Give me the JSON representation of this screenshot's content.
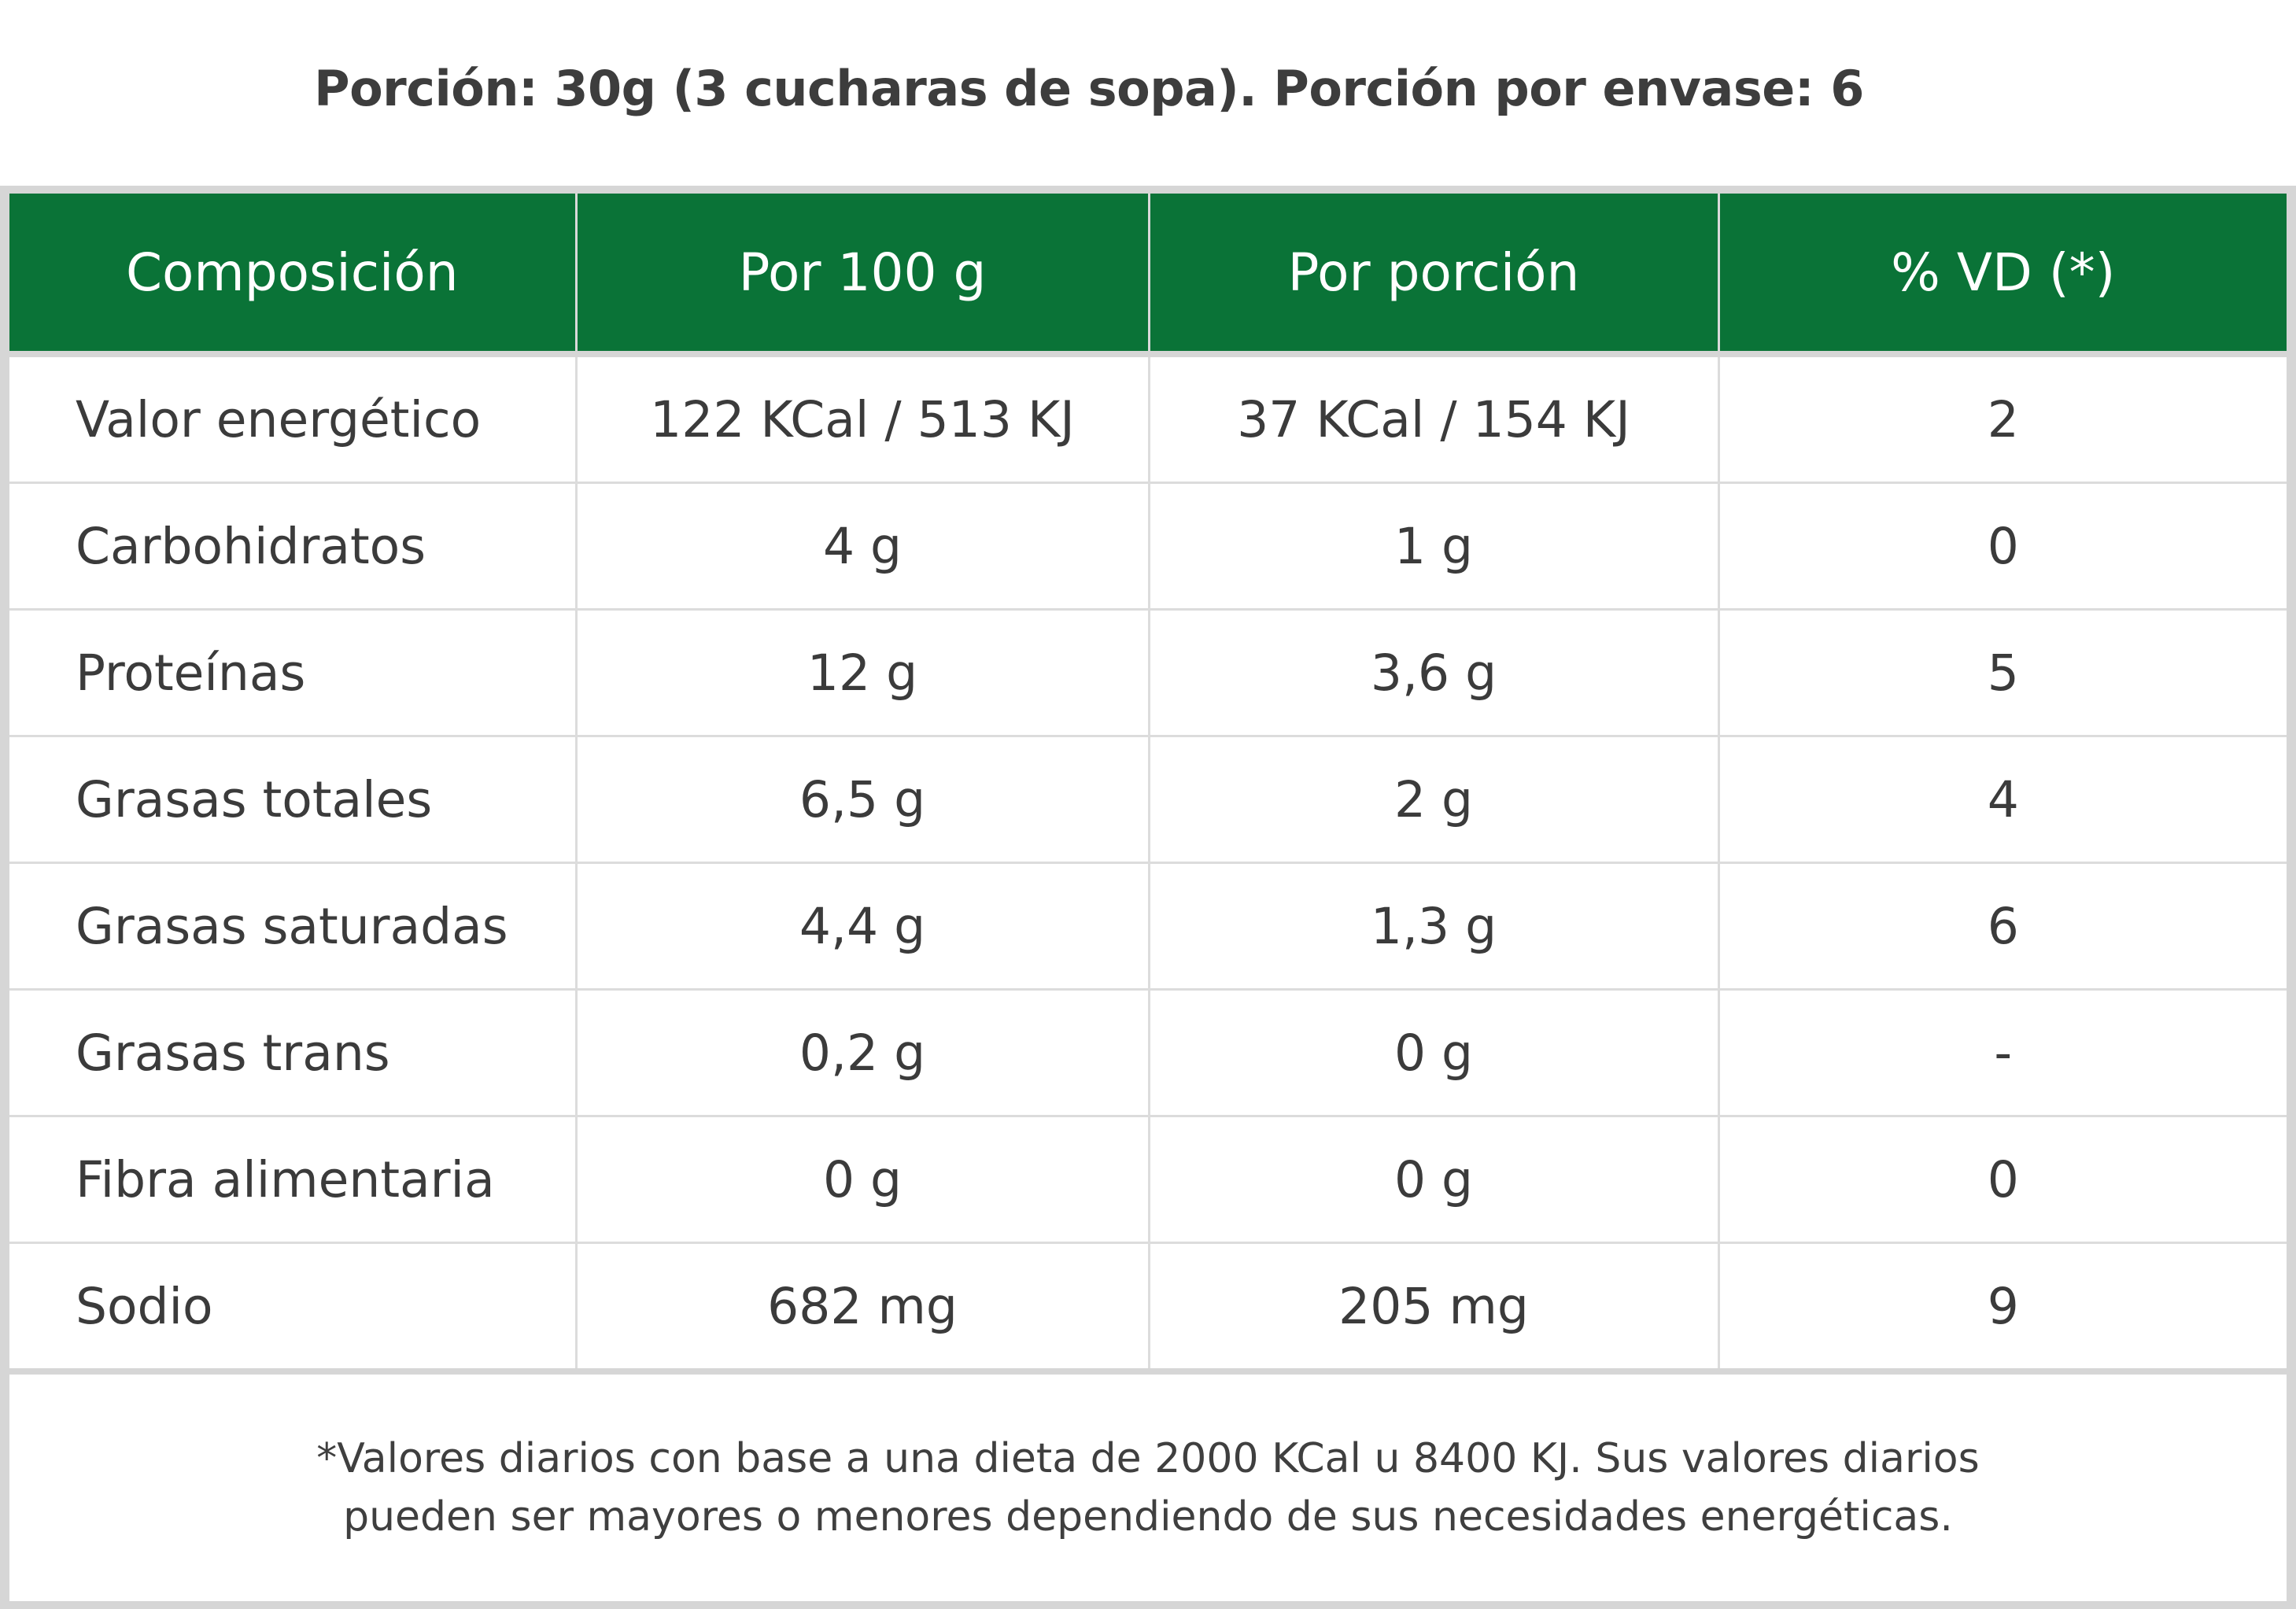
{
  "serving": {
    "title": "Porción: 30g (3 cucharas de sopa). Porción por envase: 6"
  },
  "colors": {
    "header_background": "#0a7337",
    "header_text": "#ffffff",
    "grid_lines": "#d6d6d6",
    "body_text": "#3b3b3b"
  },
  "table": {
    "headers": [
      "Composición",
      "Por 100 g",
      "Por porción",
      "% VD (*)"
    ],
    "rows": [
      [
        "Valor energético",
        "122 KCal / 513 KJ",
        "37 KCal / 154 KJ",
        "2"
      ],
      [
        "Carbohidratos",
        "4 g",
        "1 g",
        "0"
      ],
      [
        "Proteínas",
        "12 g",
        "3,6 g",
        "5"
      ],
      [
        "Grasas totales",
        "6,5 g",
        "2 g",
        "4"
      ],
      [
        "Grasas saturadas",
        "4,4 g",
        "1,3 g",
        "6"
      ],
      [
        "Grasas trans",
        "0,2 g",
        "0 g",
        "-"
      ],
      [
        "Fibra alimentaria",
        "0 g",
        "0 g",
        "0"
      ],
      [
        "Sodio",
        "682 mg",
        "205 mg",
        "9"
      ]
    ]
  },
  "footnote": {
    "line1": "*Valores diarios con base a una dieta de 2000 KCal u 8400 KJ. Sus valores diarios",
    "line2": "pueden ser mayores o menores dependiendo de sus necesidades energéticas."
  }
}
